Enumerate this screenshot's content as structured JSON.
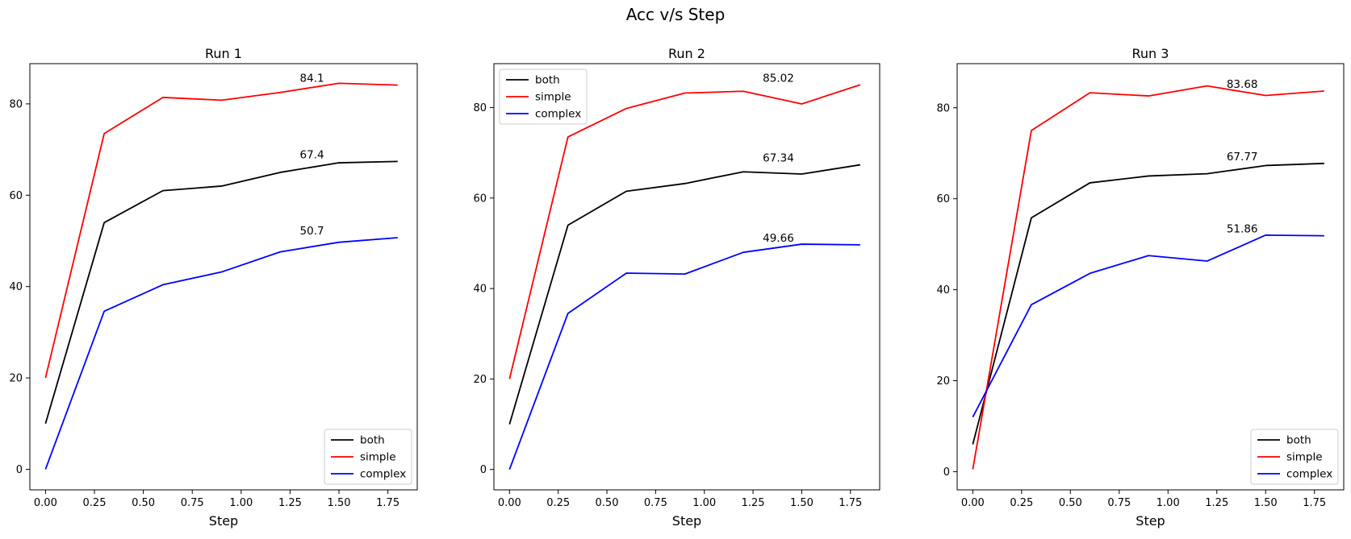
{
  "figure": {
    "title": "Acc v/s Step"
  },
  "chart_data": [
    {
      "type": "line",
      "title": "Run 1",
      "xlabel": "Step",
      "ylabel": "",
      "xlim": [
        -0.08,
        1.9
      ],
      "ylim": [
        -4.5,
        88.8
      ],
      "xticks": [
        0.0,
        0.25,
        0.5,
        0.75,
        1.0,
        1.25,
        1.5,
        1.75
      ],
      "xtick_labels": [
        "0.00",
        "0.25",
        "0.50",
        "0.75",
        "1.00",
        "1.25",
        "1.50",
        "1.75"
      ],
      "yticks": [
        0,
        20,
        40,
        60,
        80
      ],
      "ytick_labels": [
        "0",
        "20",
        "40",
        "60",
        "80"
      ],
      "x": [
        0.0,
        0.3,
        0.6,
        0.9,
        1.2,
        1.5,
        1.8
      ],
      "series": [
        {
          "name": "both",
          "color": "#000000",
          "values": [
            10,
            54,
            61,
            62,
            65,
            67.1,
            67.4
          ]
        },
        {
          "name": "simple",
          "color": "#ff0000",
          "values": [
            20,
            73.5,
            81.4,
            80.8,
            82.5,
            84.5,
            84.1
          ]
        },
        {
          "name": "complex",
          "color": "#0000ff",
          "values": [
            0,
            34.6,
            40.4,
            43.2,
            47.6,
            49.7,
            50.7
          ]
        }
      ],
      "annotations": [
        {
          "text": "84.1",
          "x": 1.3,
          "y": 84.1
        },
        {
          "text": "67.4",
          "x": 1.3,
          "y": 67.4
        },
        {
          "text": "50.7",
          "x": 1.3,
          "y": 50.7
        }
      ],
      "legend": "lower right",
      "grid": false
    },
    {
      "type": "line",
      "title": "Run 2",
      "xlabel": "Step",
      "ylabel": "",
      "xlim": [
        -0.08,
        1.9
      ],
      "ylim": [
        -4.5,
        89.7
      ],
      "xticks": [
        0.0,
        0.25,
        0.5,
        0.75,
        1.0,
        1.25,
        1.5,
        1.75
      ],
      "xtick_labels": [
        "0.00",
        "0.25",
        "0.50",
        "0.75",
        "1.00",
        "1.25",
        "1.50",
        "1.75"
      ],
      "yticks": [
        0,
        20,
        40,
        60,
        80
      ],
      "ytick_labels": [
        "0",
        "20",
        "40",
        "60",
        "80"
      ],
      "x": [
        0.0,
        0.3,
        0.6,
        0.9,
        1.2,
        1.5,
        1.8
      ],
      "series": [
        {
          "name": "both",
          "color": "#000000",
          "values": [
            10,
            54,
            61.5,
            63.2,
            65.8,
            65.3,
            67.34
          ]
        },
        {
          "name": "simple",
          "color": "#ff0000",
          "values": [
            20,
            73.5,
            79.8,
            83.2,
            83.6,
            80.8,
            85.02
          ]
        },
        {
          "name": "complex",
          "color": "#0000ff",
          "values": [
            0,
            34.5,
            43.4,
            43.2,
            48,
            49.8,
            49.66
          ]
        }
      ],
      "annotations": [
        {
          "text": "85.02",
          "x": 1.3,
          "y": 85.02
        },
        {
          "text": "67.34",
          "x": 1.3,
          "y": 67.34
        },
        {
          "text": "49.66",
          "x": 1.3,
          "y": 49.66
        }
      ],
      "legend": "upper left",
      "grid": false
    },
    {
      "type": "line",
      "title": "Run 3",
      "xlabel": "Step",
      "ylabel": "",
      "xlim": [
        -0.08,
        1.9
      ],
      "ylim": [
        -4.0,
        89.7
      ],
      "xticks": [
        0.0,
        0.25,
        0.5,
        0.75,
        1.0,
        1.25,
        1.5,
        1.75
      ],
      "xtick_labels": [
        "0.00",
        "0.25",
        "0.50",
        "0.75",
        "1.00",
        "1.25",
        "1.50",
        "1.75"
      ],
      "yticks": [
        0,
        20,
        40,
        60,
        80
      ],
      "ytick_labels": [
        "0",
        "20",
        "40",
        "60",
        "80"
      ],
      "x": [
        0.0,
        0.3,
        0.6,
        0.9,
        1.2,
        1.5,
        1.8
      ],
      "series": [
        {
          "name": "both",
          "color": "#000000",
          "values": [
            6,
            55.8,
            63.5,
            65,
            65.5,
            67.3,
            67.77
          ]
        },
        {
          "name": "simple",
          "color": "#ff0000",
          "values": [
            0.5,
            75,
            83.3,
            82.6,
            84.8,
            82.7,
            83.68
          ]
        },
        {
          "name": "complex",
          "color": "#0000ff",
          "values": [
            12,
            36.7,
            43.6,
            47.5,
            46.3,
            52,
            51.86
          ]
        }
      ],
      "annotations": [
        {
          "text": "83.68",
          "x": 1.3,
          "y": 83.68
        },
        {
          "text": "67.77",
          "x": 1.3,
          "y": 67.77
        },
        {
          "text": "51.86",
          "x": 1.3,
          "y": 51.86
        }
      ],
      "legend": "lower right",
      "grid": false
    }
  ]
}
